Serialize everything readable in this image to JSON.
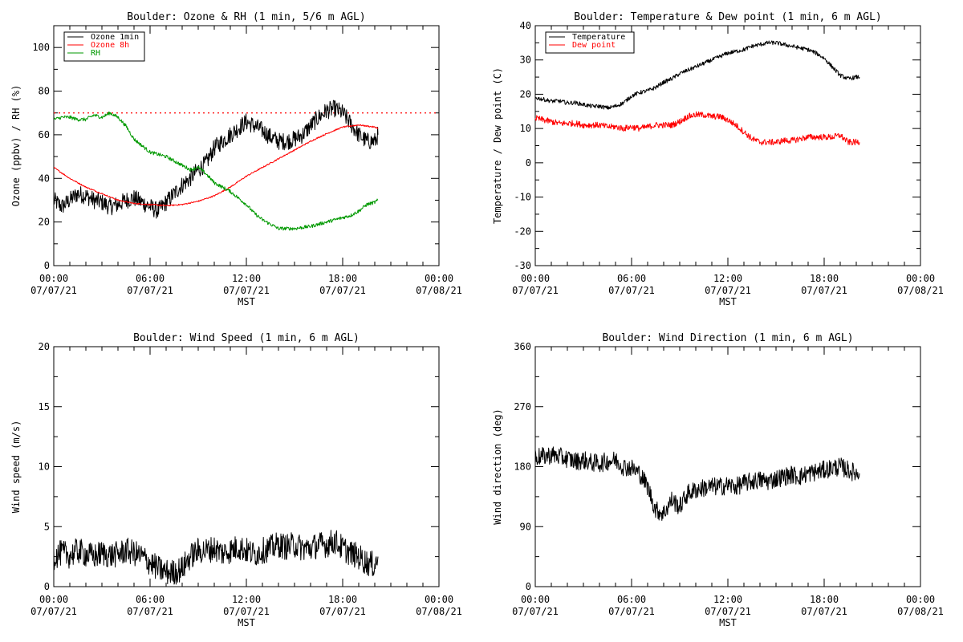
{
  "chart_data": [
    {
      "type": "line",
      "title": "Boulder: Ozone & RH (1 min, 5/6 m AGL)",
      "xlabel": "MST",
      "ylabel": "Ozone (ppbv) / RH (%)",
      "xlim": [
        "2021-07-07 00:00",
        "2021-07-08 00:00"
      ],
      "ylim": [
        0,
        110
      ],
      "yticks": [
        0,
        20,
        40,
        60,
        80,
        100
      ],
      "xtick_labels": [
        [
          "00:00",
          "07/07/21"
        ],
        [
          "06:00",
          "07/07/21"
        ],
        [
          "12:00",
          "07/07/21"
        ],
        [
          "18:00",
          "07/07/21"
        ],
        [
          "00:00",
          "07/08/21"
        ]
      ],
      "legend": "top-left",
      "grid": false,
      "reference_line": {
        "y": 70,
        "color": "#ff0000",
        "style": "dotted"
      },
      "series": [
        {
          "name": "Ozone 1min",
          "color": "#000000",
          "x_hours": [
            0,
            0.5,
            1,
            1.5,
            2,
            2.5,
            3,
            3.5,
            4,
            4.5,
            5,
            5.5,
            6,
            6.5,
            7,
            7.5,
            8,
            8.5,
            9,
            9.5,
            10,
            10.5,
            11,
            11.5,
            12,
            12.5,
            13,
            13.5,
            14,
            14.5,
            15,
            15.5,
            16,
            16.5,
            17,
            17.5,
            18,
            18.5,
            19,
            19.5,
            20,
            20.2
          ],
          "values": [
            30,
            27,
            30,
            33,
            32,
            30,
            29,
            27,
            28,
            30,
            31,
            29,
            27,
            25,
            29,
            33,
            37,
            40,
            44,
            47,
            54,
            57,
            60,
            63,
            66,
            64,
            62,
            59,
            57,
            57,
            58,
            60,
            64,
            68,
            71,
            72,
            70,
            65,
            60,
            57,
            57,
            60
          ]
        },
        {
          "name": "Ozone 8h",
          "color": "#ff0000",
          "x_hours": [
            0,
            1,
            2,
            3,
            4,
            5,
            6,
            7,
            8,
            9,
            10,
            11,
            12,
            13,
            14,
            15,
            16,
            17,
            18,
            19,
            20,
            20.2
          ],
          "values": [
            45,
            40,
            36,
            33,
            30,
            28.5,
            28,
            27.5,
            28,
            29.5,
            32,
            36,
            41,
            45,
            49,
            53,
            57,
            60.5,
            63.5,
            64.5,
            63.5,
            63
          ]
        },
        {
          "name": "RH",
          "color": "#009900",
          "x_hours": [
            0,
            0.5,
            1,
            1.5,
            2,
            2.5,
            3,
            3.5,
            4,
            4.5,
            5,
            5.5,
            6,
            6.5,
            7,
            7.5,
            8,
            8.5,
            9,
            9.5,
            10,
            10.5,
            11,
            11.5,
            12,
            12.5,
            13,
            13.5,
            14,
            14.5,
            15,
            15.5,
            16,
            16.5,
            17,
            17.5,
            18,
            18.5,
            19,
            19.5,
            20,
            20.2
          ],
          "values": [
            67,
            68,
            68,
            67,
            67,
            69,
            68,
            70,
            68,
            64,
            58,
            55,
            52,
            51,
            50,
            48,
            46,
            44,
            45,
            42,
            38,
            36,
            34,
            31,
            28,
            24,
            21,
            19,
            17,
            17,
            17,
            17.5,
            18,
            19,
            20,
            21,
            22,
            23,
            25,
            28,
            29,
            30
          ]
        }
      ]
    },
    {
      "type": "line",
      "title": "Boulder: Temperature & Dew point (1 min, 6 m AGL)",
      "xlabel": "MST",
      "ylabel": "Temperature / Dew point (C)",
      "xlim": [
        "2021-07-07 00:00",
        "2021-07-08 00:00"
      ],
      "ylim": [
        -30,
        40
      ],
      "yticks": [
        -30,
        -20,
        -10,
        0,
        10,
        20,
        30,
        40
      ],
      "xtick_labels": [
        [
          "00:00",
          "07/07/21"
        ],
        [
          "06:00",
          "07/07/21"
        ],
        [
          "12:00",
          "07/07/21"
        ],
        [
          "18:00",
          "07/07/21"
        ],
        [
          "00:00",
          "07/08/21"
        ]
      ],
      "legend": "top-left",
      "grid": false,
      "series": [
        {
          "name": "Temperature",
          "color": "#000000",
          "x_hours": [
            0,
            0.5,
            1,
            1.5,
            2,
            2.5,
            3,
            3.5,
            4,
            4.5,
            5,
            5.5,
            6,
            6.5,
            7,
            7.5,
            8,
            8.5,
            9,
            9.5,
            10,
            10.5,
            11,
            11.5,
            12,
            12.5,
            13,
            13.5,
            14,
            14.5,
            15,
            15.5,
            16,
            16.5,
            17,
            17.5,
            18,
            18.5,
            19,
            19.5,
            20,
            20.2
          ],
          "values": [
            19,
            18.5,
            18,
            18,
            17.5,
            17.5,
            17,
            16.5,
            16.5,
            16,
            16.5,
            17.5,
            19.5,
            20.5,
            21,
            22,
            23.5,
            24.5,
            26,
            27,
            28,
            29,
            30,
            31,
            32,
            32.5,
            33,
            34,
            34.5,
            35,
            35,
            34.5,
            34,
            33.5,
            33,
            32,
            30.5,
            28,
            25.5,
            24.5,
            25,
            25
          ]
        },
        {
          "name": "Dew point",
          "color": "#ff0000",
          "x_hours": [
            0,
            0.5,
            1,
            1.5,
            2,
            2.5,
            3,
            3.5,
            4,
            4.5,
            5,
            5.5,
            6,
            6.5,
            7,
            7.5,
            8,
            8.5,
            9,
            9.5,
            10,
            10.5,
            11,
            11.5,
            12,
            12.5,
            13,
            13.5,
            14,
            14.5,
            15,
            15.5,
            16,
            16.5,
            17,
            17.5,
            18,
            18.5,
            19,
            19.5,
            20,
            20.2
          ],
          "values": [
            13,
            12.5,
            12,
            11.5,
            11.5,
            11.5,
            11,
            11,
            11,
            10.5,
            10.5,
            10,
            10.5,
            10,
            10.5,
            11,
            11,
            11,
            12,
            13.5,
            14,
            14,
            13.5,
            13.5,
            12.5,
            11,
            9,
            7,
            6,
            6,
            6,
            6.5,
            6.5,
            7,
            7.5,
            7.5,
            7.5,
            7.5,
            8,
            6,
            6,
            6
          ]
        }
      ]
    },
    {
      "type": "line",
      "title": "Boulder: Wind Speed (1 min, 6 m AGL)",
      "xlabel": "MST",
      "ylabel": "Wind speed (m/s)",
      "xlim": [
        "2021-07-07 00:00",
        "2021-07-08 00:00"
      ],
      "ylim": [
        0,
        20
      ],
      "yticks": [
        0,
        5,
        10,
        15,
        20
      ],
      "xtick_labels": [
        [
          "00:00",
          "07/07/21"
        ],
        [
          "06:00",
          "07/07/21"
        ],
        [
          "12:00",
          "07/07/21"
        ],
        [
          "18:00",
          "07/07/21"
        ],
        [
          "00:00",
          "07/08/21"
        ]
      ],
      "grid": false,
      "series": [
        {
          "name": "",
          "color": "#000000",
          "x_hours": [
            0,
            0.5,
            1,
            1.5,
            2,
            2.5,
            3,
            3.5,
            4,
            4.5,
            5,
            5.5,
            6,
            6.5,
            7,
            7.5,
            8,
            8.5,
            9,
            9.5,
            10,
            10.5,
            11,
            11.5,
            12,
            12.5,
            13,
            13.5,
            14,
            14.5,
            15,
            15.5,
            16,
            16.5,
            17,
            17.5,
            18,
            18.5,
            19,
            19.5,
            20,
            20.2
          ],
          "values": [
            2.5,
            2.8,
            2.6,
            3,
            2.7,
            2.5,
            2.8,
            2.6,
            2.7,
            3,
            2.8,
            2.5,
            2,
            1.5,
            1.2,
            1.2,
            1.5,
            2.5,
            3,
            3,
            3.2,
            2.8,
            3,
            3.3,
            3,
            2.7,
            3,
            3.2,
            3.5,
            3.3,
            3.5,
            3.2,
            3.2,
            3.5,
            3.5,
            3.8,
            3.2,
            2.8,
            2.5,
            2,
            1.8,
            2.5
          ]
        }
      ]
    },
    {
      "type": "line",
      "title": "Boulder: Wind Direction (1 min, 6 m AGL)",
      "xlabel": "MST",
      "ylabel": "Wind direction (deg)",
      "xlim": [
        "2021-07-07 00:00",
        "2021-07-08 00:00"
      ],
      "ylim": [
        0,
        360
      ],
      "yticks": [
        0,
        90,
        180,
        270,
        360
      ],
      "xtick_labels": [
        [
          "00:00",
          "07/07/21"
        ],
        [
          "06:00",
          "07/07/21"
        ],
        [
          "12:00",
          "07/07/21"
        ],
        [
          "18:00",
          "07/07/21"
        ],
        [
          "00:00",
          "07/08/21"
        ]
      ],
      "grid": false,
      "series": [
        {
          "name": "",
          "color": "#000000",
          "x_hours": [
            0,
            0.5,
            1,
            1.5,
            2,
            2.5,
            3,
            3.5,
            4,
            4.5,
            5,
            5.5,
            6,
            6.5,
            7,
            7.5,
            8,
            8.5,
            9,
            9.5,
            10,
            10.5,
            11,
            11.5,
            12,
            12.5,
            13,
            13.5,
            14,
            14.5,
            15,
            15.5,
            16,
            16.5,
            17,
            17.5,
            18,
            18.5,
            19,
            19.5,
            20,
            20.2
          ],
          "values": [
            195,
            195,
            198,
            195,
            192,
            188,
            190,
            186,
            185,
            188,
            190,
            180,
            178,
            170,
            150,
            115,
            110,
            130,
            120,
            140,
            145,
            148,
            150,
            150,
            152,
            150,
            155,
            158,
            160,
            158,
            162,
            165,
            168,
            165,
            170,
            172,
            175,
            178,
            180,
            175,
            170,
            170
          ]
        }
      ]
    }
  ]
}
